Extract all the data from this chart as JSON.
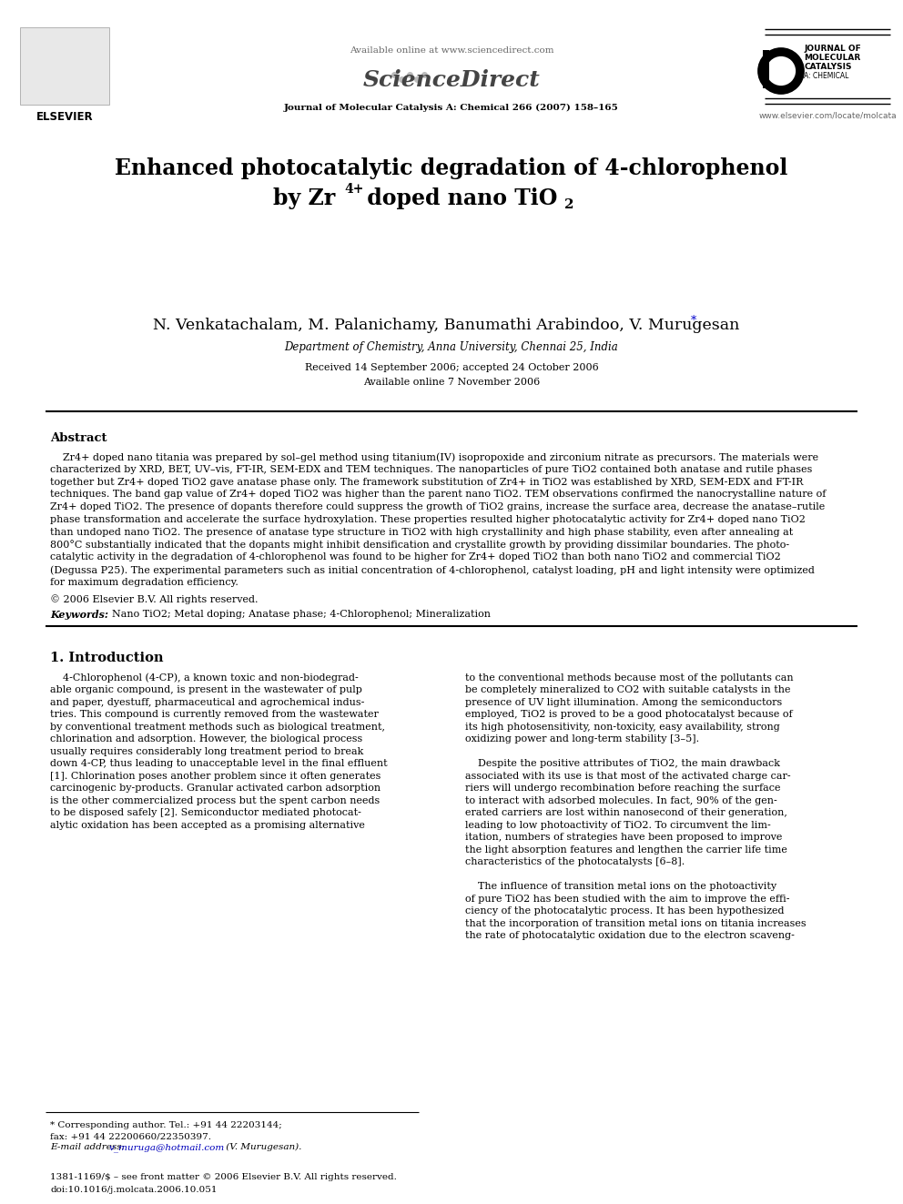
{
  "bg_color": "#ffffff",
  "header_available_text": "Available online at www.sciencedirect.com",
  "journal_line": "Journal of Molecular Catalysis A: Chemical 266 (2007) 158–165",
  "elsevier_url": "www.elsevier.com/locate/molcata",
  "title_line1": "Enhanced photocatalytic degradation of 4-chlorophenol",
  "title_line2_pre": "by Zr",
  "title_sup": "4+",
  "title_line2_post": " doped nano TiO",
  "title_sub": "2",
  "authors_line": "N. Venkatachalam, M. Palanichamy, Banumathi Arabindoo, V. Murugesan",
  "affiliation": "Department of Chemistry, Anna University, Chennai 25, India",
  "received_line": "Received 14 September 2006; accepted 24 October 2006",
  "available_online": "Available online 7 November 2006",
  "abstract_heading": "Abstract",
  "abstract_indent": "    Zr4+ doped nano titania was prepared by sol–gel method using titanium(IV) isopropoxide and zirconium nitrate as precursors. The materials were characterized by XRD, BET, UV–vis, FT-IR, SEM-EDX and TEM techniques. The nanoparticles of pure TiO2 contained both anatase and rutile phases together but Zr4+ doped TiO2 gave anatase phase only. The framework substitution of Zr4+ in TiO2 was established by XRD, SEM-EDX and FT-IR techniques. The band gap value of Zr4+ doped TiO2 was higher than the parent nano TiO2. TEM observations confirmed the nanocrystalline nature of Zr4+ doped TiO2. The presence of dopants therefore could suppress the growth of TiO2 grains, increase the surface area, decrease the anatase–rutile phase transformation and accelerate the surface hydroxylation. These properties resulted higher photocatalytic activity for Zr4+ doped nano TiO2 than undoped nano TiO2. The presence of anatase type structure in TiO2 with high crystallinity and high phase stability, even after annealing at 800°C substantially indicated that the dopants might inhibit densification and crystallite growth by providing dissimilar boundaries. The photocatalytic activity in the degradation of 4-chlorophenol was found to be higher for Zr4+ doped TiO2 than both nano TiO2 and commercial TiO2 (Degussa P25). The experimental parameters such as initial concentration of 4-chlorophenol, catalyst loading, pH and light intensity were optimized for maximum degradation efficiency.",
  "copyright_line": "© 2006 Elsevier B.V. All rights reserved.",
  "keywords_label": "Keywords:",
  "keywords_text": "  Nano TiO2; Metal doping; Anatase phase; 4-Chlorophenol; Mineralization",
  "intro_heading": "1. Introduction",
  "col1_lines": [
    "    4-Chlorophenol (4-CP), a known toxic and non-biodegrad-",
    "able organic compound, is present in the wastewater of pulp",
    "and paper, dyestuff, pharmaceutical and agrochemical indus-",
    "tries. This compound is currently removed from the wastewater",
    "by conventional treatment methods such as biological treatment,",
    "chlorination and adsorption. However, the biological process",
    "usually requires considerably long treatment period to break",
    "down 4-CP, thus leading to unacceptable level in the final effluent",
    "[1]. Chlorination poses another problem since it often generates",
    "carcinogenic by-products. Granular activated carbon adsorption",
    "is the other commercialized process but the spent carbon needs",
    "to be disposed safely [2]. Semiconductor mediated photocat-",
    "alytic oxidation has been accepted as a promising alternative"
  ],
  "col2_lines": [
    "to the conventional methods because most of the pollutants can",
    "be completely mineralized to CO2 with suitable catalysts in the",
    "presence of UV light illumination. Among the semiconductors",
    "employed, TiO2 is proved to be a good photocatalyst because of",
    "its high photosensitivity, non-toxicity, easy availability, strong",
    "oxidizing power and long-term stability [3–5].",
    "",
    "    Despite the positive attributes of TiO2, the main drawback",
    "associated with its use is that most of the activated charge car-",
    "riers will undergo recombination before reaching the surface",
    "to interact with adsorbed molecules. In fact, 90% of the gen-",
    "erated carriers are lost within nanosecond of their generation,",
    "leading to low photoactivity of TiO2. To circumvent the lim-",
    "itation, numbers of strategies have been proposed to improve",
    "the light absorption features and lengthen the carrier life time",
    "characteristics of the photocatalysts [6–8].",
    "",
    "    The influence of transition metal ions on the photoactivity",
    "of pure TiO2 has been studied with the aim to improve the effi-",
    "ciency of the photocatalytic process. It has been hypothesized",
    "that the incorporation of transition metal ions on titania increases",
    "the rate of photocatalytic oxidation due to the electron scaveng-"
  ],
  "footnote1": "* Corresponding author. Tel.: +91 44 22203144;",
  "footnote2": "fax: +91 44 22200660/22350397.",
  "footnote3_pre": "E-mail address: ",
  "footnote3_email": "v_muruga@hotmail.com",
  "footnote3_post": " (V. Murugesan).",
  "footer1": "1381-1169/$ – see front matter © 2006 Elsevier B.V. All rights reserved.",
  "footer2": "doi:10.1016/j.molcata.2006.10.051"
}
